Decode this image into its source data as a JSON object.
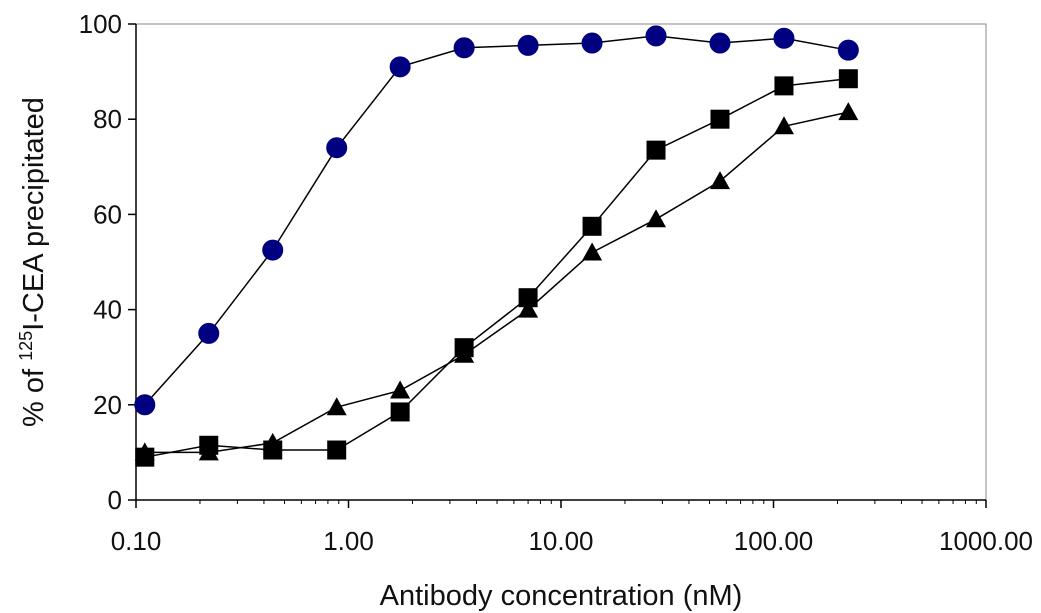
{
  "chart_data": {
    "type": "line",
    "title": "",
    "xlabel": "Antibody concentration (nM)",
    "ylabel": {
      "prefix": "% of ",
      "superscript": "125",
      "suffix": "I-CEA precipitated"
    },
    "x_scale": "log",
    "xlim": [
      0.1,
      1000
    ],
    "ylim": [
      0,
      100
    ],
    "x_ticks": [
      0.1,
      1,
      10,
      100,
      1000
    ],
    "x_tick_labels": [
      "0.10",
      "1.00",
      "10.00",
      "100.00",
      "1000.00"
    ],
    "y_ticks": [
      0,
      20,
      40,
      60,
      80,
      100
    ],
    "y_tick_labels": [
      "0",
      "20",
      "40",
      "60",
      "80",
      "100"
    ],
    "grid": false,
    "legend": "none",
    "x": [
      0.11,
      0.22,
      0.44,
      0.88,
      1.75,
      3.5,
      7,
      14,
      28,
      56,
      112,
      225
    ],
    "series": [
      {
        "marker": "circle",
        "color": "#000080",
        "values": [
          20,
          35,
          52.5,
          74,
          91,
          95,
          95.5,
          96,
          97.5,
          96,
          97,
          94.5
        ]
      },
      {
        "marker": "square",
        "color": "#000000",
        "values": [
          9,
          11.5,
          10.5,
          10.5,
          18.5,
          32,
          42.5,
          57.5,
          73.5,
          80,
          87,
          88.5
        ]
      },
      {
        "marker": "triangle",
        "color": "#000000",
        "values": [
          10,
          10,
          12,
          19.5,
          23,
          30.5,
          40,
          52,
          59,
          67,
          78.5,
          81.5
        ]
      }
    ]
  }
}
